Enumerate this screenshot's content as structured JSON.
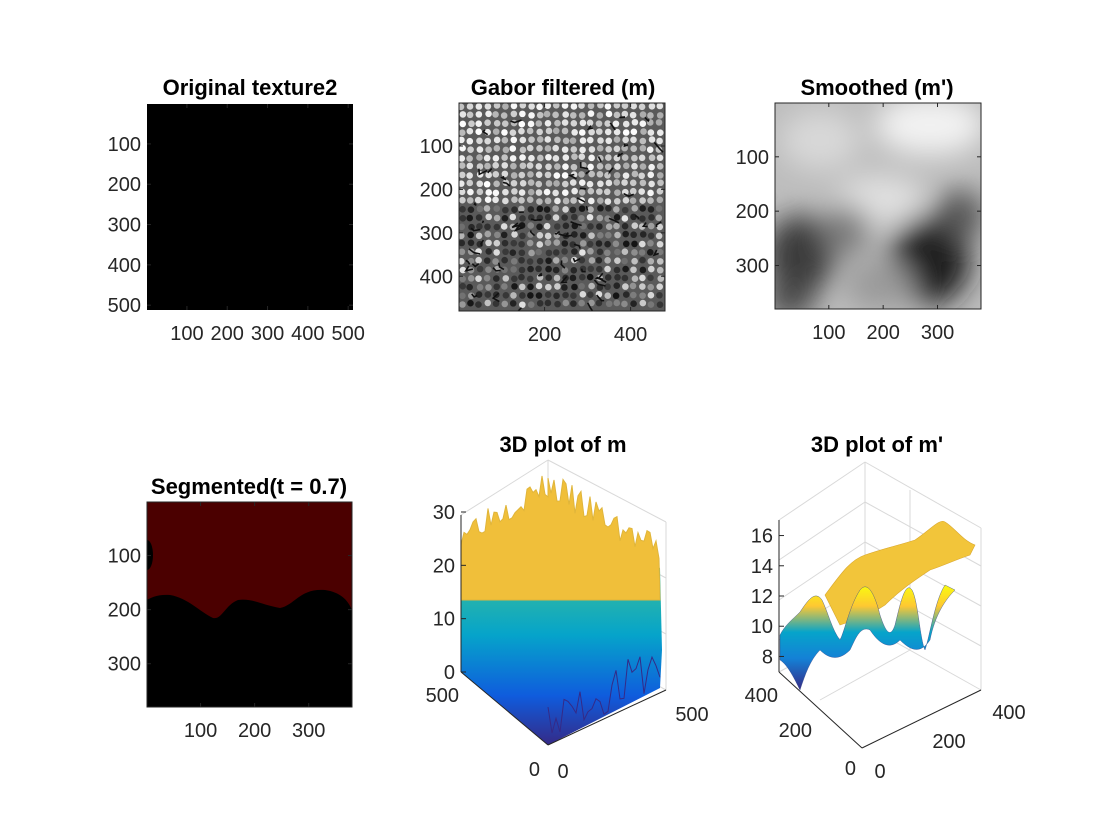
{
  "chart_data": [
    {
      "type": "heatmap",
      "title": "Original texture2",
      "colormap": "gray",
      "xticks": [
        "100",
        "200",
        "300",
        "400",
        "500"
      ],
      "yticks": [
        "100",
        "200",
        "300",
        "400",
        "500"
      ],
      "xlim": [
        1,
        512
      ],
      "ylim": [
        1,
        512
      ],
      "fill_color": "#000000"
    },
    {
      "type": "heatmap",
      "title": "Gabor filtered (m)",
      "colormap": "gray",
      "xticks": [
        "200",
        "400"
      ],
      "yticks": [
        "100",
        "200",
        "300",
        "400"
      ],
      "xlim": [
        1,
        480
      ],
      "ylim": [
        1,
        480
      ]
    },
    {
      "type": "heatmap",
      "title": "Smoothed (m')",
      "colormap": "gray",
      "xticks": [
        "100",
        "200",
        "300"
      ],
      "yticks": [
        "100",
        "200",
        "300"
      ],
      "xlim": [
        1,
        380
      ],
      "ylim": [
        1,
        380
      ]
    },
    {
      "type": "heatmap",
      "title": "Segmented(t = 0.7)",
      "colormap": "binary",
      "xticks": [
        "100",
        "200",
        "300"
      ],
      "yticks": [
        "100",
        "200",
        "300"
      ],
      "xlim": [
        1,
        380
      ],
      "ylim": [
        1,
        380
      ],
      "colors": {
        "above": "#4b0000",
        "below": "#000000"
      }
    },
    {
      "type": "area",
      "title": "3D plot of m",
      "surface": "3d",
      "colormap": "parula",
      "zticks": [
        "0",
        "10",
        "20",
        "30"
      ],
      "xticks": [
        "0",
        "500"
      ],
      "yticks": [
        "500",
        "0"
      ],
      "zlim": [
        0,
        30
      ]
    },
    {
      "type": "area",
      "title": "3D plot of m'",
      "surface": "3d",
      "colormap": "parula",
      "zticks": [
        "8",
        "10",
        "12",
        "14",
        "16"
      ],
      "xticks": [
        "0",
        "200",
        "400"
      ],
      "yticks": [
        "400",
        "200",
        "0"
      ],
      "zlim": [
        7.5,
        16.5
      ]
    }
  ],
  "colors": {
    "axis": "#262626",
    "grid3d": "#d9d9d9",
    "parula": [
      "#352a87",
      "#0f5cdd",
      "#1481d6",
      "#06a4ca",
      "#2eb7a4",
      "#87bf77",
      "#d1bb59",
      "#fec832",
      "#f9fb0e"
    ]
  }
}
